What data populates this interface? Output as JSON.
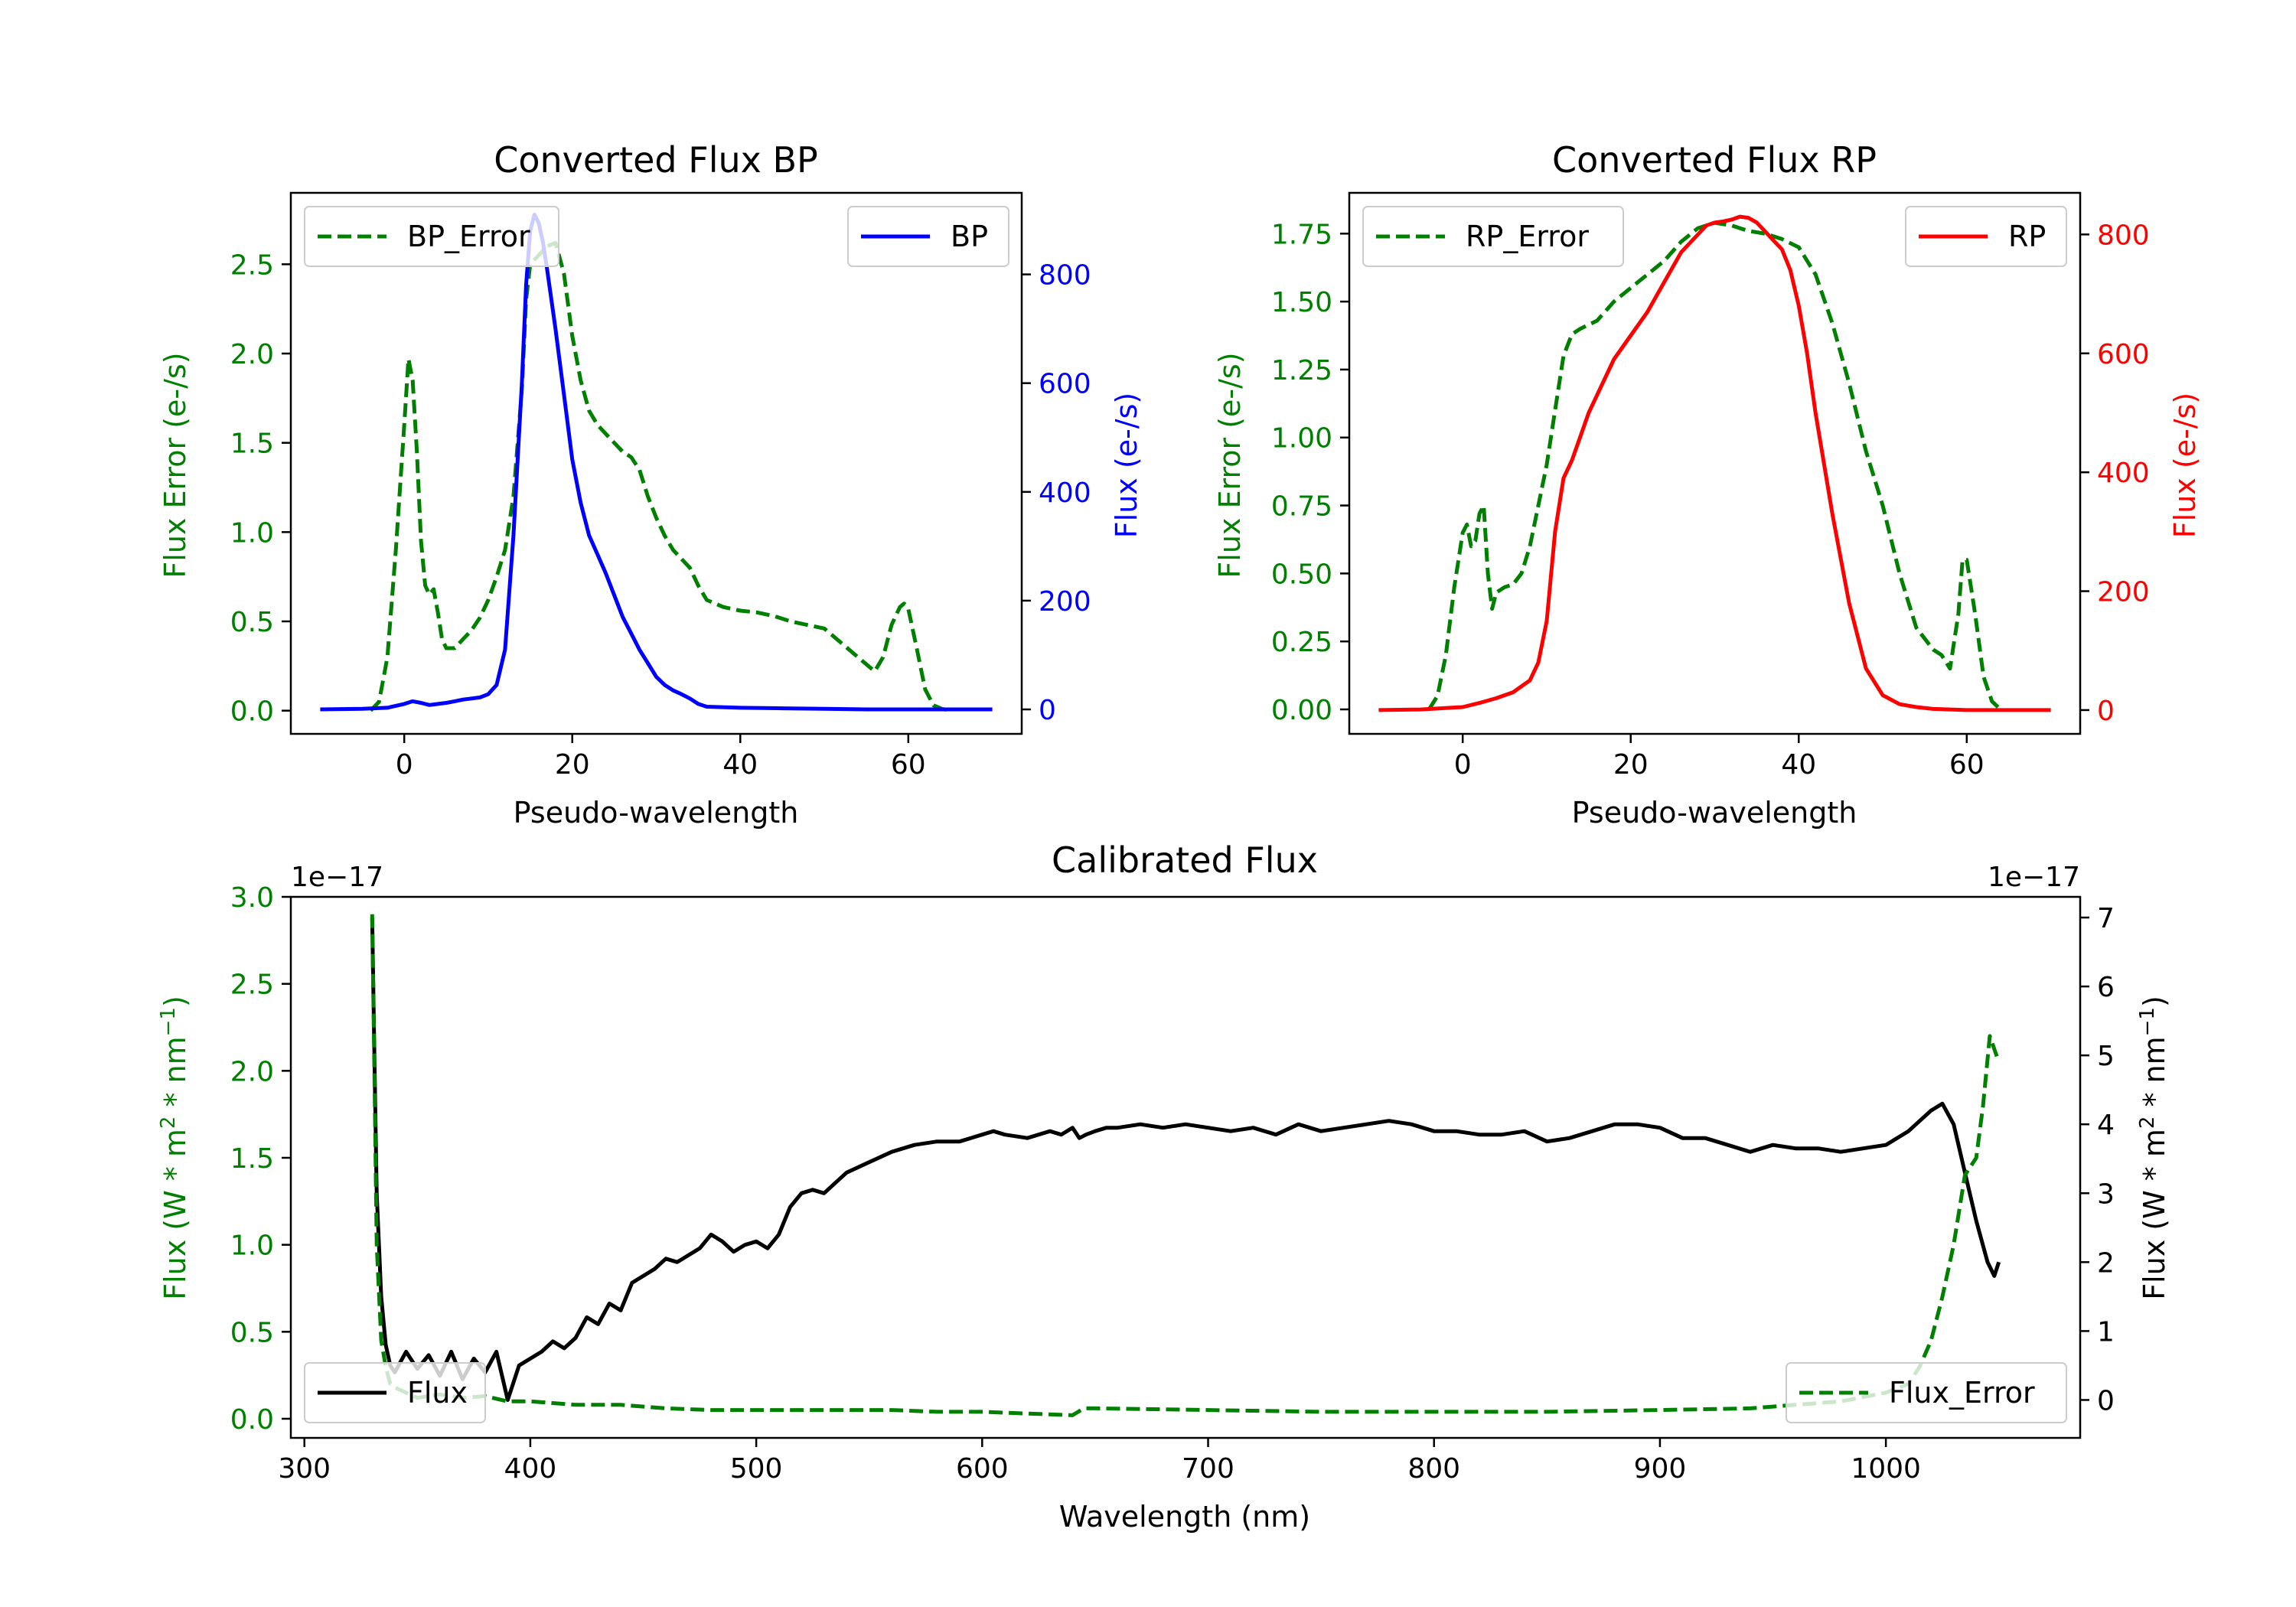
{
  "colors": {
    "error": "#008000",
    "bp": "#0000ff",
    "rp": "#ff0000",
    "flux": "#000000",
    "axis": "#000000"
  },
  "chart_data": [
    {
      "id": "bp",
      "type": "line",
      "title": "Converted Flux BP",
      "xlabel": "Pseudo-wavelength",
      "xlim": [
        -13.5,
        73.5
      ],
      "xticks": [
        0,
        20,
        40,
        60
      ],
      "left_axis": {
        "label": "Flux Error (e-/s)",
        "color": "#008000",
        "ylim": [
          -0.13,
          2.9
        ],
        "ticks": [
          0.0,
          0.5,
          1.0,
          1.5,
          2.0,
          2.5
        ],
        "tick_labels": [
          "0.0",
          "0.5",
          "1.0",
          "1.5",
          "2.0",
          "2.5"
        ]
      },
      "right_axis": {
        "label": "Flux (e-/s)",
        "color": "#0000ff",
        "ylim": [
          -45,
          950
        ],
        "ticks": [
          0,
          200,
          400,
          600,
          800
        ],
        "tick_labels": [
          "0",
          "200",
          "400",
          "600",
          "800"
        ]
      },
      "legend_left": {
        "label": "BP_Error",
        "position": "upper left"
      },
      "legend_right": {
        "label": "BP",
        "position": "upper right"
      },
      "series": [
        {
          "name": "BP_Error",
          "axis": "left",
          "style": "dashed",
          "color": "#008000",
          "x": [
            -4,
            -3,
            -2,
            -1,
            0,
            0.5,
            1,
            1.5,
            2,
            2.5,
            3,
            3.5,
            4,
            4.5,
            5,
            6,
            7,
            8,
            9,
            10,
            11,
            12,
            13,
            14,
            14.5,
            15,
            16,
            17,
            18,
            19,
            20,
            21,
            22,
            23,
            24,
            25,
            26,
            27,
            28,
            29,
            30,
            31,
            32,
            33,
            34,
            35,
            36,
            37,
            38,
            40,
            42,
            44,
            46,
            48,
            50,
            52,
            54,
            56,
            57,
            58,
            59,
            59.5,
            60,
            61,
            62,
            63,
            64,
            65
          ],
          "y": [
            0.0,
            0.05,
            0.3,
            0.9,
            1.6,
            1.97,
            1.85,
            1.45,
            0.95,
            0.7,
            0.65,
            0.68,
            0.55,
            0.4,
            0.35,
            0.35,
            0.4,
            0.45,
            0.52,
            0.62,
            0.75,
            0.9,
            1.2,
            1.8,
            2.3,
            2.5,
            2.55,
            2.6,
            2.62,
            2.45,
            2.1,
            1.85,
            1.68,
            1.6,
            1.55,
            1.5,
            1.45,
            1.42,
            1.35,
            1.2,
            1.08,
            0.98,
            0.9,
            0.85,
            0.8,
            0.7,
            0.62,
            0.6,
            0.58,
            0.56,
            0.55,
            0.53,
            0.5,
            0.48,
            0.46,
            0.38,
            0.3,
            0.22,
            0.3,
            0.48,
            0.58,
            0.6,
            0.57,
            0.35,
            0.12,
            0.03,
            0.01,
            0.0
          ]
        },
        {
          "name": "BP",
          "axis": "right",
          "style": "solid",
          "color": "#0000ff",
          "x": [
            -10,
            -5,
            -2,
            0,
            1,
            2,
            3,
            4,
            5,
            6,
            7,
            8,
            9,
            10,
            11,
            12,
            13,
            14,
            14.5,
            15,
            15.5,
            16,
            16.5,
            17,
            18,
            19,
            20,
            21,
            22,
            23,
            24,
            25,
            26,
            27,
            28,
            29,
            30,
            31,
            32,
            33,
            34,
            35,
            36,
            40,
            45,
            50,
            55,
            60,
            65,
            70
          ],
          "y": [
            0,
            1,
            3,
            10,
            15,
            12,
            8,
            10,
            12,
            15,
            18,
            20,
            22,
            28,
            45,
            110,
            320,
            600,
            780,
            880,
            910,
            895,
            860,
            810,
            700,
            580,
            460,
            380,
            320,
            285,
            250,
            210,
            170,
            140,
            110,
            85,
            60,
            45,
            35,
            28,
            20,
            10,
            5,
            3,
            2,
            1,
            0,
            0,
            0,
            0
          ]
        }
      ]
    },
    {
      "id": "rp",
      "type": "line",
      "title": "Converted Flux RP",
      "xlabel": "Pseudo-wavelength",
      "xlim": [
        -13.5,
        73.5
      ],
      "xticks": [
        0,
        20,
        40,
        60
      ],
      "left_axis": {
        "label": "Flux Error (e-/s)",
        "color": "#008000",
        "ylim": [
          -0.09,
          1.9
        ],
        "ticks": [
          0.0,
          0.25,
          0.5,
          0.75,
          1.0,
          1.25,
          1.5,
          1.75
        ],
        "tick_labels": [
          "0.00",
          "0.25",
          "0.50",
          "0.75",
          "1.00",
          "1.25",
          "1.50",
          "1.75"
        ]
      },
      "right_axis": {
        "label": "Flux (e-/s)",
        "color": "#ff0000",
        "ylim": [
          -40,
          870
        ],
        "ticks": [
          0,
          200,
          400,
          600,
          800
        ],
        "tick_labels": [
          "0",
          "200",
          "400",
          "600",
          "800"
        ]
      },
      "legend_left": {
        "label": "RP_Error",
        "position": "upper left"
      },
      "legend_right": {
        "label": "RP",
        "position": "upper right"
      },
      "series": [
        {
          "name": "RP_Error",
          "axis": "left",
          "style": "dashed",
          "color": "#008000",
          "x": [
            -4,
            -3,
            -2,
            -1,
            0,
            0.5,
            1,
            1.5,
            2,
            2.5,
            3,
            3.5,
            4,
            5,
            6,
            7,
            8,
            9,
            10,
            11,
            12,
            13,
            14,
            16,
            18,
            20,
            22,
            24,
            26,
            28,
            30,
            32,
            33,
            34,
            36,
            38,
            40,
            42,
            44,
            46,
            48,
            50,
            52,
            54,
            56,
            57,
            58,
            59,
            59.5,
            60,
            61,
            62,
            63,
            64
          ],
          "y": [
            0.0,
            0.05,
            0.2,
            0.45,
            0.65,
            0.68,
            0.6,
            0.62,
            0.72,
            0.75,
            0.5,
            0.37,
            0.43,
            0.45,
            0.46,
            0.5,
            0.6,
            0.75,
            0.9,
            1.1,
            1.3,
            1.38,
            1.4,
            1.43,
            1.5,
            1.55,
            1.6,
            1.65,
            1.72,
            1.77,
            1.79,
            1.78,
            1.77,
            1.76,
            1.75,
            1.73,
            1.7,
            1.6,
            1.42,
            1.2,
            0.95,
            0.75,
            0.5,
            0.3,
            0.22,
            0.2,
            0.15,
            0.35,
            0.55,
            0.55,
            0.35,
            0.12,
            0.03,
            0.0
          ]
        },
        {
          "name": "RP",
          "axis": "right",
          "style": "solid",
          "color": "#ff0000",
          "x": [
            -10,
            -5,
            0,
            2,
            4,
            6,
            8,
            9,
            10,
            11,
            12,
            13,
            14,
            15,
            16,
            18,
            20,
            22,
            24,
            26,
            28,
            29,
            30,
            31,
            32,
            33,
            34,
            35,
            36,
            37,
            38,
            39,
            40,
            41,
            42,
            44,
            46,
            48,
            50,
            52,
            54,
            56,
            58,
            60,
            65,
            70
          ],
          "y": [
            0,
            1,
            5,
            12,
            20,
            30,
            50,
            80,
            150,
            300,
            390,
            420,
            460,
            500,
            530,
            590,
            630,
            670,
            720,
            770,
            800,
            815,
            820,
            822,
            825,
            830,
            828,
            820,
            805,
            790,
            775,
            740,
            680,
            600,
            500,
            330,
            180,
            70,
            25,
            10,
            5,
            2,
            1,
            0,
            0,
            0
          ]
        }
      ]
    },
    {
      "id": "calibrated",
      "type": "line",
      "title": "Calibrated Flux",
      "xlabel": "Wavelength (nm)",
      "xlim": [
        294,
        1086
      ],
      "xticks": [
        300,
        400,
        500,
        600,
        700,
        800,
        900,
        1000
      ],
      "left_axis": {
        "label_base": "Flux (W * m",
        "label_exp": "2",
        "label_mid": " * nm",
        "label_exp2": "−1",
        "label_end": ")",
        "color": "#008000",
        "offset_text": "1e−17",
        "ylim": [
          -0.11,
          3.0
        ],
        "ticks": [
          0.0,
          0.5,
          1.0,
          1.5,
          2.0,
          2.5,
          3.0
        ],
        "tick_labels": [
          "0.0",
          "0.5",
          "1.0",
          "1.5",
          "2.0",
          "2.5",
          "3.0"
        ]
      },
      "right_axis": {
        "label_base": "Flux (W * m",
        "label_exp": "2",
        "label_mid": " * nm",
        "label_exp2": "−1",
        "label_end": ")",
        "color": "#000000",
        "offset_text": "1e−17",
        "ylim": [
          -0.55,
          7.3
        ],
        "ticks": [
          0,
          1,
          2,
          3,
          4,
          5,
          6,
          7
        ],
        "tick_labels": [
          "0",
          "1",
          "2",
          "3",
          "4",
          "5",
          "6",
          "7"
        ]
      },
      "legend_left": {
        "label": "Flux",
        "position": "lower left"
      },
      "legend_right": {
        "label": "Flux_Error",
        "position": "lower right"
      },
      "series": [
        {
          "name": "Flux",
          "axis": "right",
          "style": "solid",
          "color": "#000000",
          "x": [
            330,
            331,
            332,
            334,
            336,
            338,
            340,
            345,
            350,
            355,
            360,
            365,
            370,
            375,
            380,
            385,
            390,
            395,
            400,
            405,
            410,
            415,
            420,
            425,
            430,
            435,
            440,
            445,
            450,
            455,
            460,
            465,
            470,
            475,
            480,
            485,
            490,
            495,
            500,
            505,
            510,
            515,
            520,
            525,
            530,
            535,
            540,
            550,
            560,
            570,
            580,
            590,
            600,
            605,
            610,
            620,
            630,
            635,
            640,
            643,
            646,
            650,
            655,
            660,
            670,
            680,
            690,
            700,
            710,
            720,
            730,
            740,
            750,
            760,
            770,
            780,
            790,
            800,
            810,
            820,
            830,
            840,
            850,
            860,
            870,
            880,
            890,
            900,
            910,
            920,
            930,
            940,
            950,
            960,
            970,
            980,
            990,
            1000,
            1010,
            1020,
            1025,
            1030,
            1035,
            1040,
            1045,
            1048,
            1050
          ],
          "y": [
            7.0,
            5.0,
            3.0,
            1.5,
            0.8,
            0.5,
            0.4,
            0.7,
            0.45,
            0.65,
            0.35,
            0.7,
            0.3,
            0.6,
            0.4,
            0.7,
            0.0,
            0.5,
            0.6,
            0.7,
            0.85,
            0.75,
            0.9,
            1.2,
            1.1,
            1.4,
            1.3,
            1.7,
            1.8,
            1.9,
            2.05,
            2.0,
            2.1,
            2.2,
            2.4,
            2.3,
            2.15,
            2.25,
            2.3,
            2.2,
            2.4,
            2.8,
            3.0,
            3.05,
            3.0,
            3.15,
            3.3,
            3.45,
            3.6,
            3.7,
            3.75,
            3.75,
            3.85,
            3.9,
            3.85,
            3.8,
            3.9,
            3.85,
            3.95,
            3.8,
            3.85,
            3.9,
            3.95,
            3.95,
            4.0,
            3.95,
            4.0,
            3.95,
            3.9,
            3.95,
            3.85,
            4.0,
            3.9,
            3.95,
            4.0,
            4.05,
            4.0,
            3.9,
            3.9,
            3.85,
            3.85,
            3.9,
            3.75,
            3.8,
            3.9,
            4.0,
            4.0,
            3.95,
            3.8,
            3.8,
            3.7,
            3.6,
            3.7,
            3.65,
            3.65,
            3.6,
            3.65,
            3.7,
            3.9,
            4.2,
            4.3,
            4.0,
            3.3,
            2.6,
            2.0,
            1.8,
            2.0
          ]
        },
        {
          "name": "Flux_Error",
          "axis": "left",
          "style": "dashed",
          "color": "#008000",
          "x": [
            330,
            331,
            332,
            334,
            336,
            338,
            340,
            345,
            350,
            360,
            370,
            380,
            390,
            400,
            420,
            440,
            460,
            480,
            500,
            520,
            540,
            560,
            580,
            600,
            620,
            640,
            645,
            650,
            700,
            750,
            800,
            850,
            900,
            940,
            960,
            980,
            1000,
            1010,
            1015,
            1020,
            1025,
            1030,
            1035,
            1040,
            1043,
            1046,
            1050
          ],
          "y": [
            2.9,
            2.0,
            1.0,
            0.45,
            0.3,
            0.2,
            0.18,
            0.15,
            0.12,
            0.14,
            0.12,
            0.13,
            0.1,
            0.1,
            0.08,
            0.08,
            0.06,
            0.05,
            0.05,
            0.05,
            0.05,
            0.05,
            0.04,
            0.04,
            0.03,
            0.02,
            0.06,
            0.06,
            0.05,
            0.04,
            0.04,
            0.04,
            0.05,
            0.06,
            0.08,
            0.1,
            0.15,
            0.2,
            0.3,
            0.45,
            0.7,
            1.0,
            1.4,
            1.5,
            1.8,
            2.2,
            2.05
          ]
        }
      ]
    }
  ]
}
